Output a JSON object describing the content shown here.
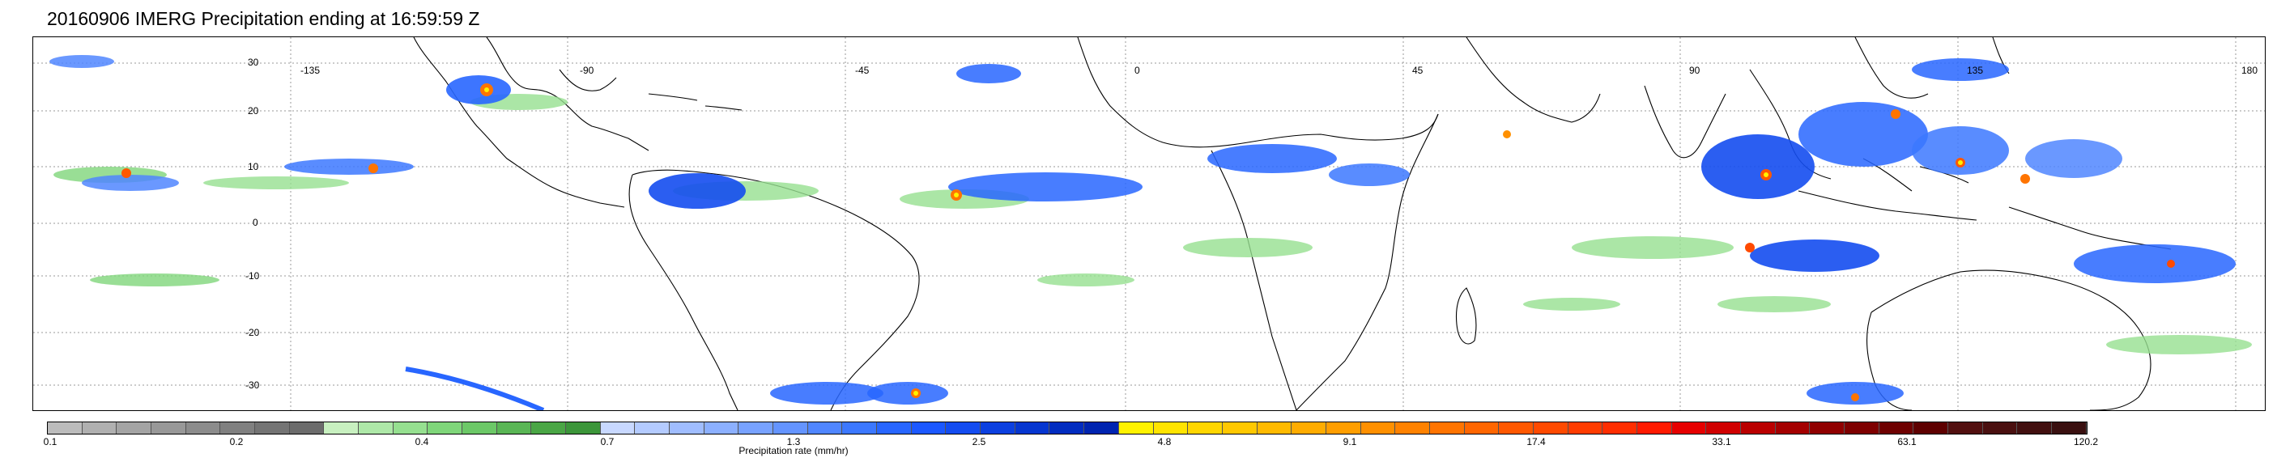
{
  "title": "20160906 IMERG Precipitation ending at 16:59:59 Z",
  "map": {
    "lat_labels": [
      "30",
      "20",
      "10",
      "0",
      "-10",
      "-20",
      "-30"
    ],
    "lon_labels": [
      "-135",
      "-90",
      "-45",
      "0",
      "45",
      "90",
      "135",
      "180"
    ]
  },
  "colorbar": {
    "tick_labels": [
      "0.1",
      "0.2",
      "0.4",
      "0.7",
      "1.3",
      "2.5",
      "4.8",
      "9.1",
      "17.4",
      "33.1",
      "63.1",
      "120.2"
    ],
    "axis_label": "Precipitation rate (mm/hr)",
    "colors": [
      "#bcbcbc",
      "#b0b0b0",
      "#a4a4a4",
      "#989898",
      "#8c8c8c",
      "#808080",
      "#747474",
      "#6c6c6c",
      "#c8f0c0",
      "#aee8a8",
      "#96e090",
      "#7fd67a",
      "#6cc867",
      "#5ab655",
      "#4aa645",
      "#3c963a",
      "#c8d8ff",
      "#b4cbff",
      "#a0bdff",
      "#8cb0ff",
      "#78a2ff",
      "#6494ff",
      "#5086ff",
      "#3c78ff",
      "#2866ff",
      "#1c58ff",
      "#144cf0",
      "#0c40e0",
      "#0636d0",
      "#022cc0",
      "#0024b0",
      "#fff200",
      "#ffe400",
      "#ffd600",
      "#ffc800",
      "#ffba00",
      "#ffac00",
      "#ff9e00",
      "#ff9000",
      "#ff8200",
      "#ff7400",
      "#ff6600",
      "#ff5800",
      "#ff4a00",
      "#ff3c00",
      "#ff2e00",
      "#ff1a00",
      "#e60000",
      "#d00000",
      "#ba0000",
      "#a40000",
      "#900000",
      "#7e0000",
      "#6e0000",
      "#5e0000",
      "#521010",
      "#4a1010",
      "#421010",
      "#3a1010"
    ]
  }
}
